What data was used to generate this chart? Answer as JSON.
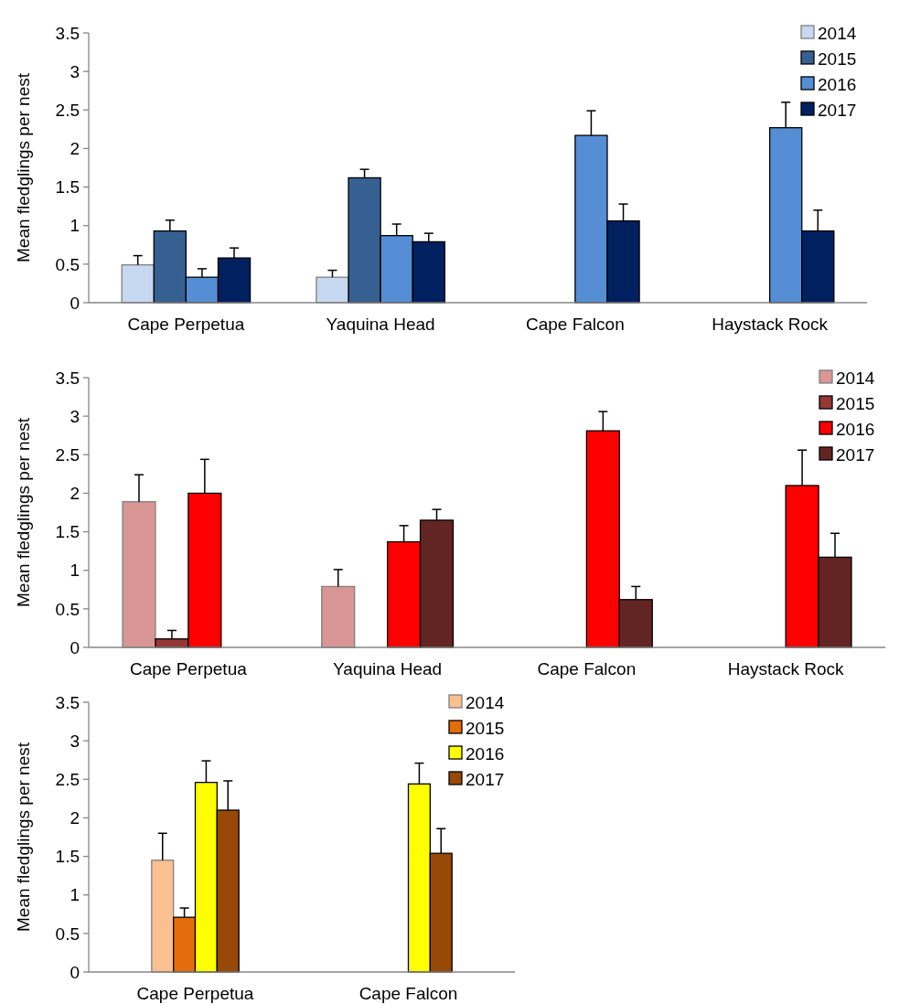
{
  "chart_data": [
    {
      "type": "bar",
      "ylabel": "Mean fledglings per nest",
      "categories": [
        "Cape Perpetua",
        "Yaquina Head",
        "Cape Falcon",
        "Haystack Rock"
      ],
      "ylim": [
        0,
        3.5
      ],
      "yticks": [
        0,
        0.5,
        1,
        1.5,
        2,
        2.5,
        3,
        3.5
      ],
      "legend": "top right",
      "grid": false,
      "series": [
        {
          "name": "2014",
          "color": "#c6d9f1",
          "values": [
            0.49,
            0.33,
            null,
            null
          ],
          "errors": [
            [
              0.49,
              0.61
            ],
            [
              0.33,
              0.42
            ],
            null,
            null
          ]
        },
        {
          "name": "2015",
          "color": "#376092",
          "values": [
            0.93,
            1.62,
            null,
            null
          ],
          "errors": [
            [
              0.93,
              1.07
            ],
            [
              1.62,
              1.73
            ],
            null,
            null
          ]
        },
        {
          "name": "2016",
          "color": "#558ed5",
          "values": [
            0.33,
            0.87,
            2.17,
            2.27
          ],
          "errors": [
            [
              0.33,
              0.44
            ],
            [
              0.87,
              1.02
            ],
            [
              2.17,
              2.49
            ],
            [
              2.27,
              2.6
            ]
          ]
        },
        {
          "name": "2017",
          "color": "#002060",
          "values": [
            0.58,
            0.79,
            1.06,
            0.93
          ],
          "errors": [
            [
              0.58,
              0.71
            ],
            [
              0.79,
              0.9
            ],
            [
              1.06,
              1.28
            ],
            [
              0.93,
              1.2
            ]
          ]
        }
      ]
    },
    {
      "type": "bar",
      "ylabel": "Mean fledglings per nest",
      "categories": [
        "Cape Perpetua",
        "Yaquina Head",
        "Cape Falcon",
        "Haystack Rock"
      ],
      "ylim": [
        0,
        3.5
      ],
      "yticks": [
        0,
        0.5,
        1,
        1.5,
        2,
        2.5,
        3,
        3.5
      ],
      "legend": "top right",
      "grid": false,
      "series": [
        {
          "name": "2014",
          "color": "#d99694",
          "values": [
            1.89,
            0.79,
            null,
            null
          ],
          "errors": [
            [
              1.89,
              2.24
            ],
            [
              0.79,
              1.01
            ],
            null,
            null
          ]
        },
        {
          "name": "2015",
          "color": "#953735",
          "values": [
            0.11,
            0,
            null,
            null
          ],
          "errors": [
            [
              0.11,
              0.22
            ],
            null,
            null,
            null
          ]
        },
        {
          "name": "2016",
          "color": "#ff0000",
          "values": [
            2.0,
            1.37,
            2.81,
            2.1
          ],
          "errors": [
            [
              2.0,
              2.44
            ],
            [
              1.37,
              1.58
            ],
            [
              2.81,
              3.06
            ],
            [
              2.1,
              2.56
            ]
          ]
        },
        {
          "name": "2017",
          "color": "#632523",
          "values": [
            0,
            1.65,
            0.62,
            1.17
          ],
          "errors": [
            null,
            [
              1.65,
              1.79
            ],
            [
              0.62,
              0.79
            ],
            [
              1.17,
              1.48
            ]
          ]
        }
      ]
    },
    {
      "type": "bar",
      "ylabel": "Mean fledglings per nest",
      "categories": [
        "Cape Perpetua",
        "Cape Falcon"
      ],
      "ylim": [
        0,
        3.5
      ],
      "yticks": [
        0,
        0.5,
        1,
        1.5,
        2,
        2.5,
        3,
        3.5
      ],
      "legend": "top right",
      "grid": false,
      "series": [
        {
          "name": "2014",
          "color": "#fac090",
          "values": [
            1.45,
            null
          ],
          "errors": [
            [
              1.45,
              1.8
            ],
            null
          ]
        },
        {
          "name": "2015",
          "color": "#e46c0a",
          "values": [
            0.71,
            null
          ],
          "errors": [
            [
              0.71,
              0.83
            ],
            null
          ]
        },
        {
          "name": "2016",
          "color": "#ffff00",
          "values": [
            2.46,
            2.44
          ],
          "errors": [
            [
              2.46,
              2.74
            ],
            [
              2.44,
              2.71
            ]
          ]
        },
        {
          "name": "2017",
          "color": "#984807",
          "values": [
            2.1,
            1.54
          ],
          "errors": [
            [
              2.1,
              2.48
            ],
            [
              1.54,
              1.86
            ]
          ]
        }
      ]
    }
  ]
}
